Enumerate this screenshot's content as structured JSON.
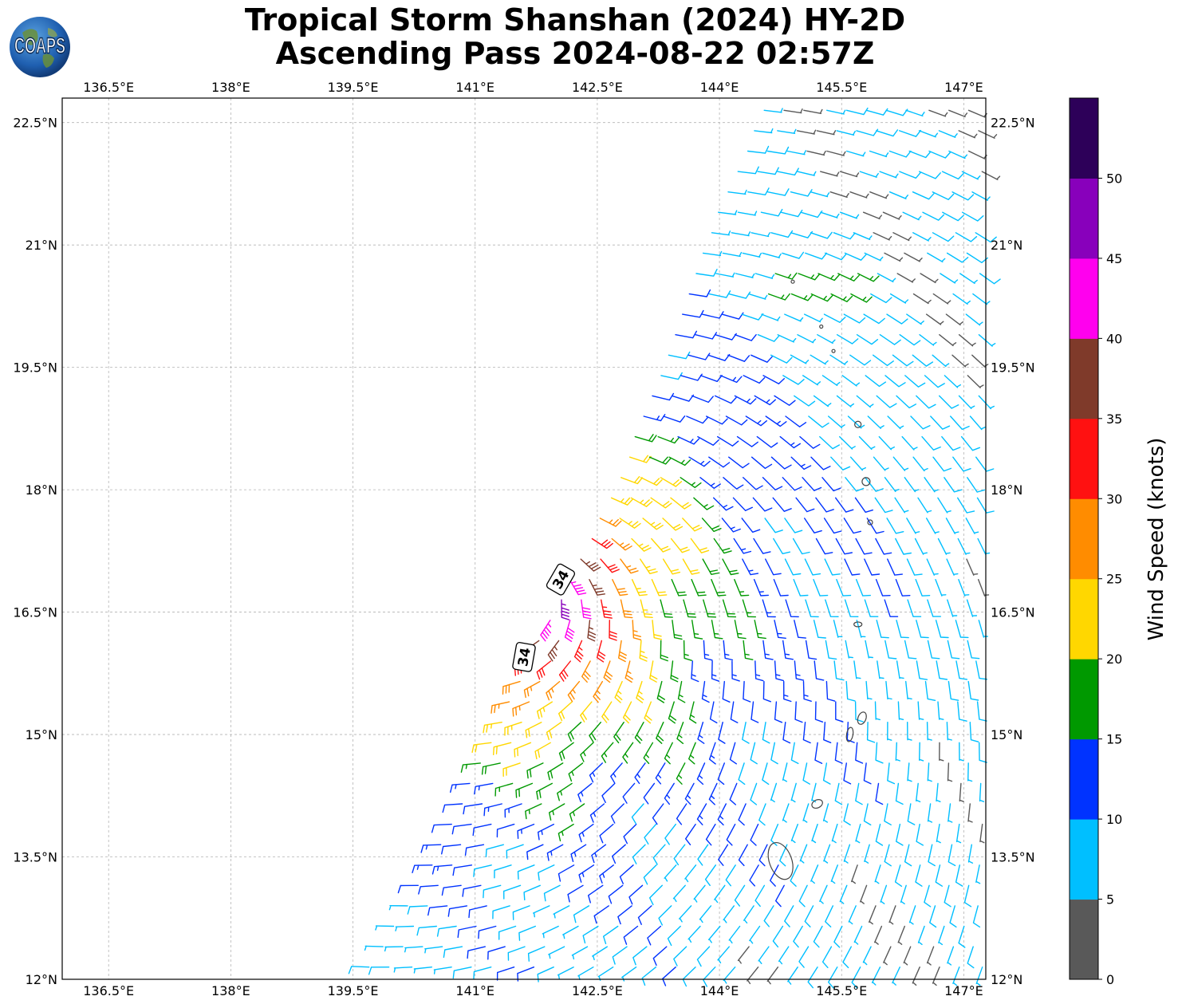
{
  "title": {
    "line1": "Tropical Storm Shanshan (2024) HY-2D",
    "line2": "Ascending Pass 2024-08-22 02:57Z"
  },
  "logo": {
    "text": "COAPS"
  },
  "map": {
    "lon_ticks": [
      "136.5°E",
      "138°E",
      "139.5°E",
      "141°E",
      "142.5°E",
      "144°E",
      "145.5°E",
      "147°E"
    ],
    "lon_values": [
      136.5,
      138,
      139.5,
      141,
      142.5,
      144,
      145.5,
      147
    ],
    "lat_ticks": [
      "22.5°N",
      "21°N",
      "19.5°N",
      "18°N",
      "16.5°N",
      "15°N",
      "13.5°N",
      "12°N"
    ],
    "lat_values": [
      22.5,
      21,
      19.5,
      18,
      16.5,
      15,
      13.5,
      12
    ],
    "lon_range": [
      135.93,
      147.27
    ],
    "lat_range": [
      12,
      22.8
    ],
    "contour_labels": [
      "34",
      "34"
    ],
    "storm_center": {
      "lon": 141.6,
      "lat": 16.8
    },
    "swath_edge": [
      [
        139.6,
        12.0
      ],
      [
        140.5,
        13.5
      ],
      [
        141.6,
        15.8
      ],
      [
        142.0,
        16.6
      ],
      [
        142.7,
        18.0
      ],
      [
        143.3,
        19.5
      ],
      [
        143.8,
        21.0
      ],
      [
        144.6,
        22.8
      ]
    ]
  },
  "colorbar": {
    "label": "Wind Speed (knots)",
    "tick_labels": [
      "0",
      "5",
      "10",
      "15",
      "20",
      "25",
      "30",
      "35",
      "40",
      "45",
      "50"
    ],
    "colors": [
      "#595959",
      "#00bfff",
      "#0033ff",
      "#009900",
      "#ffd700",
      "#ff8c00",
      "#ff1111",
      "#7f3a2a",
      "#ff00ee",
      "#8800bb",
      "#2d0059"
    ]
  }
}
